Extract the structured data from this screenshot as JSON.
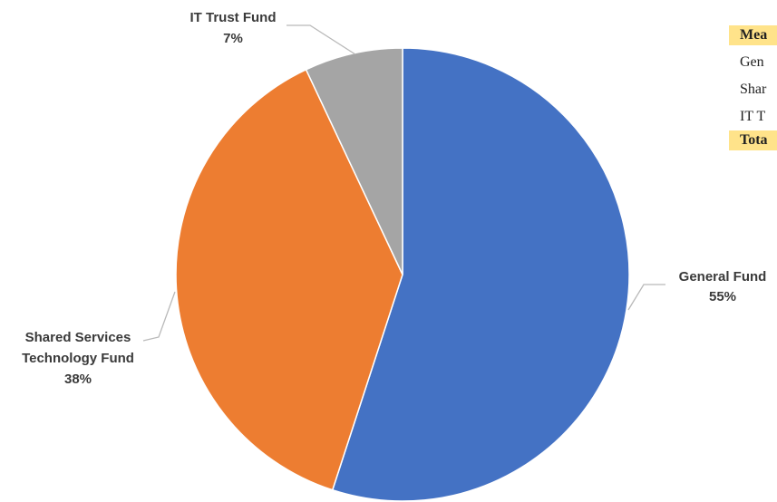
{
  "chart_data": {
    "type": "pie",
    "categories": [
      "General Fund",
      "Shared Services Technology Fund",
      "IT Trust Fund"
    ],
    "values": [
      55,
      38,
      7
    ],
    "labels": {
      "general": {
        "name": "General Fund",
        "pct": "55%"
      },
      "shared_line1": "Shared Services",
      "shared_line2": "Technology Fund",
      "shared_pct": "38%",
      "it": {
        "name": "IT Trust Fund",
        "pct": "7%"
      }
    },
    "colors": [
      "#4472c4",
      "#ed7d31",
      "#a5a5a5"
    ],
    "start_angle_deg": 0,
    "direction": "clockwise"
  },
  "side_table": {
    "header": "Mea",
    "rows": [
      "Gen",
      "Shar",
      "IT T"
    ],
    "total": "Tota"
  }
}
